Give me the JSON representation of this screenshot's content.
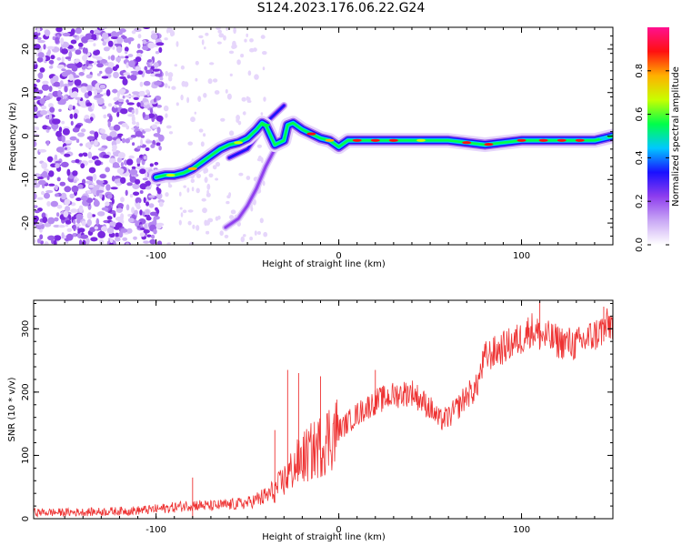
{
  "title": "S124.2023.176.06.22.G24",
  "chart_data": [
    {
      "type": "heatmap",
      "xlabel": "Height of straight line (km)",
      "ylabel": "Frequency (Hz)",
      "xlim": [
        -167,
        150
      ],
      "ylim": [
        -25,
        25
      ],
      "x_ticks": [
        -100,
        0,
        100
      ],
      "y_ticks": [
        -20,
        -10,
        0,
        10,
        20
      ],
      "colorbar": {
        "label": "Normalized spectral amplitude",
        "ticks": [
          0.0,
          0.2,
          0.4,
          0.6,
          0.8
        ],
        "range": [
          0,
          1
        ],
        "colors": [
          "#ffffff",
          "#c9a8f5",
          "#8e3dee",
          "#1a10ff",
          "#00c8ff",
          "#00ff4a",
          "#c8ff00",
          "#ffb000",
          "#ff1010",
          "#ff1090"
        ]
      },
      "ridge_main": {
        "x": [
          -100,
          -95,
          -90,
          -85,
          -80,
          -75,
          -70,
          -65,
          -60,
          -55,
          -50,
          -45,
          -42,
          -40,
          -35,
          -30,
          -28,
          -25,
          -20,
          -15,
          -10,
          -5,
          0,
          5,
          10,
          20,
          40,
          60,
          70,
          80,
          90,
          100,
          120,
          140,
          150
        ],
        "y": [
          -9.5,
          -9,
          -9,
          -8.5,
          -7.5,
          -6,
          -4.5,
          -3,
          -2,
          -1.5,
          -0.5,
          1.5,
          3.0,
          2.5,
          -2.0,
          -1.0,
          2.5,
          3.0,
          1.5,
          0.5,
          -0.5,
          -1.0,
          -2.5,
          -1.0,
          -1.0,
          -1.0,
          -1.0,
          -1.0,
          -1.5,
          -2.0,
          -1.5,
          -1.0,
          -1.0,
          -1.0,
          0.0
        ]
      },
      "ridge_secondary": {
        "x": [
          -62,
          -55,
          -50,
          -45,
          -40,
          -35,
          -30
        ],
        "y": [
          -21,
          -19,
          -16,
          -12,
          -7,
          -3,
          0
        ]
      },
      "ridge_peak_high": {
        "x": [
          -60,
          -50,
          -40,
          -35,
          -30
        ],
        "y": [
          -5,
          -3,
          3,
          5,
          7
        ]
      }
    },
    {
      "type": "line",
      "xlabel": "Height of straight line (km)",
      "ylabel": "SNR (10 * v/v)",
      "xlim": [
        -167,
        150
      ],
      "ylim": [
        0,
        345
      ],
      "x_ticks": [
        -100,
        0,
        100
      ],
      "y_ticks": [
        0,
        100,
        200,
        300
      ],
      "series": [
        {
          "color": "#ee3333",
          "x": [
            -167,
            -150,
            -130,
            -110,
            -100,
            -90,
            -80,
            -70,
            -60,
            -50,
            -40,
            -35,
            -30,
            -25,
            -20,
            -15,
            -10,
            -5,
            0,
            10,
            20,
            30,
            40,
            50,
            55,
            60,
            65,
            70,
            75,
            80,
            90,
            100,
            105,
            110,
            120,
            130,
            140,
            150
          ],
          "y": [
            10,
            10,
            11,
            13,
            15,
            18,
            22,
            20,
            22,
            25,
            35,
            45,
            60,
            80,
            95,
            105,
            115,
            130,
            140,
            165,
            185,
            195,
            200,
            175,
            155,
            160,
            175,
            195,
            205,
            255,
            270,
            285,
            300,
            290,
            280,
            275,
            290,
            310
          ]
        }
      ],
      "spikes": [
        {
          "x": -80,
          "y": 65
        },
        {
          "x": -35,
          "y": 140
        },
        {
          "x": -28,
          "y": 235
        },
        {
          "x": -22,
          "y": 230
        },
        {
          "x": -10,
          "y": 225
        },
        {
          "x": 20,
          "y": 235
        },
        {
          "x": 110,
          "y": 345
        },
        {
          "x": 145,
          "y": 335
        }
      ]
    }
  ]
}
